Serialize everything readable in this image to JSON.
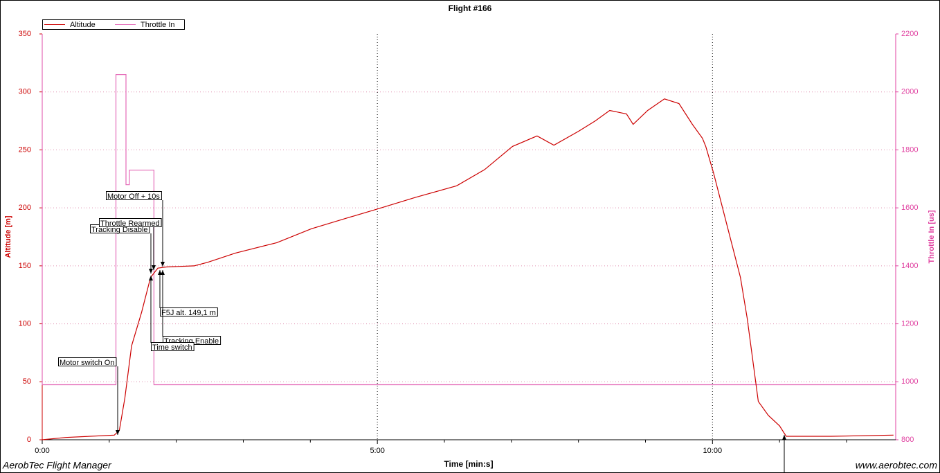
{
  "chart_data": {
    "type": "line",
    "title": "Flight #166",
    "xlabel": "Time [min:s]",
    "ylabel": "Altitude [m]",
    "y2label": "Throttle In [us]",
    "xlim": [
      0,
      764
    ],
    "xticks": [
      {
        "value": 0,
        "label": "0:00"
      },
      {
        "value": 300,
        "label": "5:00"
      },
      {
        "value": 600,
        "label": "10:00"
      }
    ],
    "xminor_ticks": [
      60,
      120,
      180,
      240,
      360,
      420,
      480,
      540,
      660,
      720
    ],
    "ylim": [
      0,
      350
    ],
    "yticks": [
      0,
      50,
      100,
      150,
      200,
      250,
      300,
      350
    ],
    "y2lim": [
      800,
      2200
    ],
    "y2ticks": [
      800,
      1000,
      1200,
      1400,
      1600,
      1800,
      2000,
      2200
    ],
    "grid": true,
    "legend": "top-left",
    "series": [
      {
        "name": "Altitude",
        "color": "#cc0000",
        "x": [
          0,
          21,
          64.5,
          69,
          74,
          80,
          89,
          97,
          103.5,
          111,
          136,
          148,
          173,
          210,
          241,
          272,
          300,
          334,
          371,
          396,
          421,
          443,
          458,
          480,
          495,
          508,
          523,
          529,
          542,
          557,
          570,
          582,
          591,
          594,
          601,
          613,
          625,
          631,
          641,
          650,
          660,
          666,
          706,
          762
        ],
        "values": [
          0,
          2,
          4,
          8,
          36,
          81,
          110,
          140,
          148,
          149,
          150,
          153,
          161,
          170,
          182,
          191,
          199,
          209,
          219,
          233,
          253,
          262,
          254,
          266,
          275,
          284,
          281,
          272,
          284,
          294,
          290,
          272,
          260,
          253,
          230,
          185,
          140,
          105,
          33,
          21,
          12,
          3,
          3,
          4
        ]
      },
      {
        "name": "Throttle In",
        "color": "#e46ab8",
        "axis": "y2",
        "x": [
          0,
          0,
          66,
          66,
          75,
          75,
          78,
          78,
          100,
          100,
          764
        ],
        "values": [
          2200,
          990,
          990,
          2060,
          2060,
          1680,
          1680,
          1730,
          1730,
          990,
          990
        ]
      }
    ],
    "annotations": [
      "Motor switch On",
      "Tracking Disable",
      "Throttle Rearmed",
      "Motor Off + 10s",
      "F5J alt. 149,1 m",
      "Tracking Enable",
      "Time switch"
    ],
    "footer_left": "AerobTec Flight Manager",
    "footer_right": "www.aerobtec.com"
  }
}
